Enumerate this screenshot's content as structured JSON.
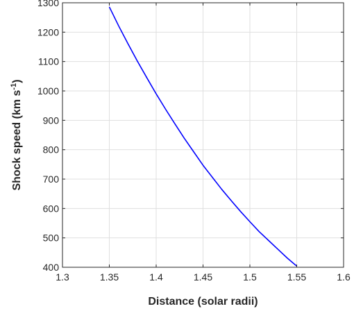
{
  "chart_data": {
    "type": "line",
    "title": "",
    "xlabel": "Distance (solar radii)",
    "ylabel_main": "Shock speed (km s",
    "ylabel_sup": "-1",
    "ylabel_close": ")",
    "xlim": [
      1.3,
      1.6
    ],
    "ylim": [
      400,
      1300
    ],
    "xticks": [
      "1.3",
      "1.35",
      "1.4",
      "1.45",
      "1.5",
      "1.55",
      "1.6"
    ],
    "yticks": [
      "400",
      "500",
      "600",
      "700",
      "800",
      "900",
      "1000",
      "1100",
      "1200",
      "1300"
    ],
    "grid": true,
    "series": [
      {
        "color": "#0000ff",
        "x": [
          1.35,
          1.36,
          1.37,
          1.38,
          1.39,
          1.4,
          1.41,
          1.42,
          1.43,
          1.44,
          1.45,
          1.46,
          1.47,
          1.48,
          1.49,
          1.5,
          1.51,
          1.52,
          1.53,
          1.54,
          1.55
        ],
        "y": [
          1286,
          1221,
          1160,
          1101,
          1045,
          990,
          938,
          888,
          839,
          793,
          747,
          706,
          665,
          627,
          590,
          555,
          521,
          491,
          461,
          431,
          404
        ]
      }
    ]
  }
}
